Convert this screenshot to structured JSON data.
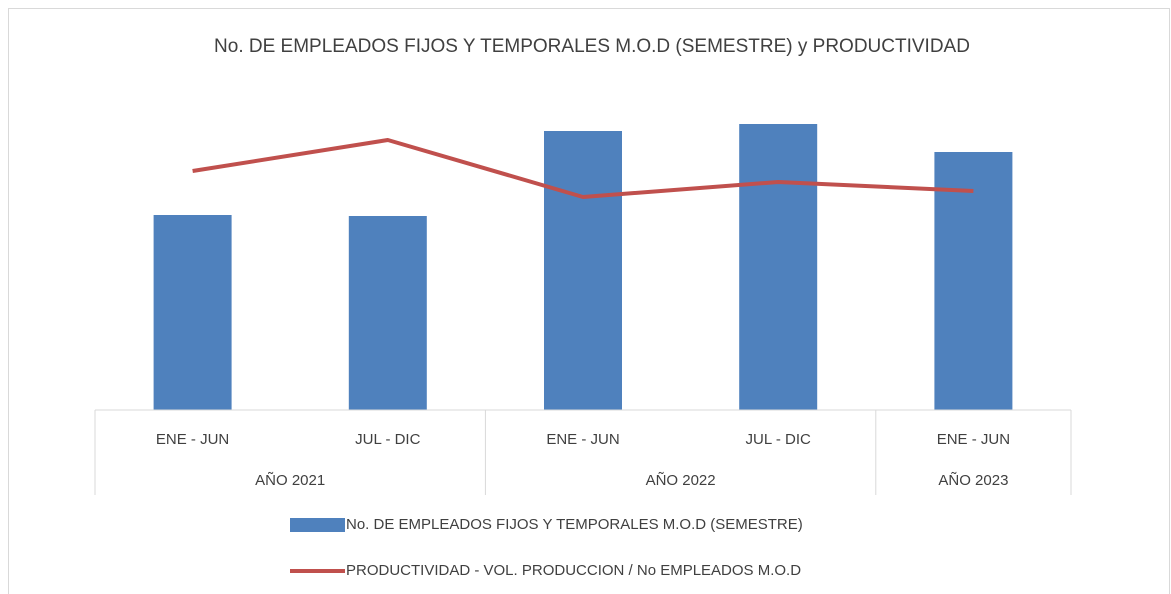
{
  "chart_data": {
    "type": "bar_line",
    "title": "No. DE EMPLEADOS FIJOS Y TEMPORALES M.O.D (SEMESTRE) y PRODUCTIVIDAD",
    "categories": [
      "ENE - JUN",
      "JUL - DIC",
      "ENE - JUN",
      "JUL - DIC",
      "ENE - JUN"
    ],
    "groups": [
      {
        "label": "AÑO 2021",
        "span": 2
      },
      {
        "label": "AÑO 2022",
        "span": 2
      },
      {
        "label": "AÑO 2023",
        "span": 1
      }
    ],
    "ylim": [
      0,
      300
    ],
    "y2lim": [
      0,
      300
    ],
    "series": [
      {
        "name": "No. DE EMPLEADOS FIJOS Y TEMPORALES M.O.D (SEMESTRE)",
        "type": "bar",
        "color": "#4f81bd",
        "values": [
          195,
          194,
          279,
          286,
          258
        ]
      },
      {
        "name": "PRODUCTIVIDAD  - VOL. PRODUCCION / No EMPLEADOS M.O.D",
        "type": "line",
        "axis": "y2",
        "color": "#c0504d",
        "values": [
          239,
          270,
          213,
          228,
          219
        ]
      }
    ]
  }
}
